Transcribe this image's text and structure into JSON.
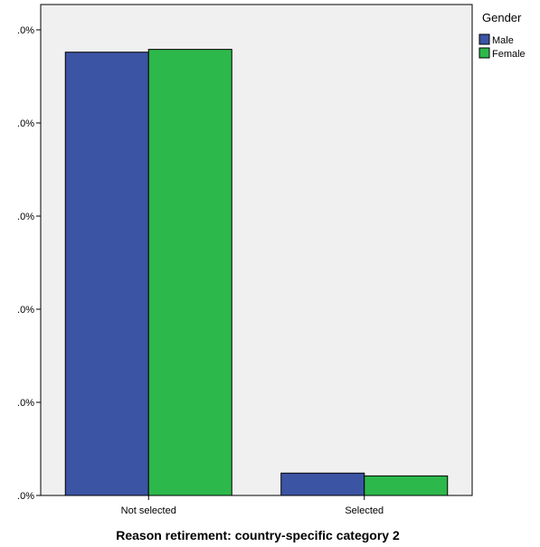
{
  "chart_data": {
    "type": "bar",
    "xlabel": "Reason retirement: country-specific category 2",
    "ylabel": "",
    "categories": [
      "Not selected",
      "Selected"
    ],
    "series": [
      {
        "name": "Male",
        "color": "#3b54a4",
        "values": [
          95.2,
          4.8
        ]
      },
      {
        "name": "Female",
        "color": "#2db84b",
        "values": [
          95.8,
          4.2
        ]
      }
    ],
    "ylim": [
      0,
      100
    ],
    "yticks": [
      0,
      20,
      40,
      60,
      80,
      100
    ],
    "ytick_labels": [
      ".0%",
      ".0%",
      ".0%",
      ".0%",
      ".0%",
      ".0%"
    ],
    "legend": {
      "title": "Gender",
      "position": "top-right"
    },
    "grid": false,
    "plot_background": "#f0f0f0"
  }
}
